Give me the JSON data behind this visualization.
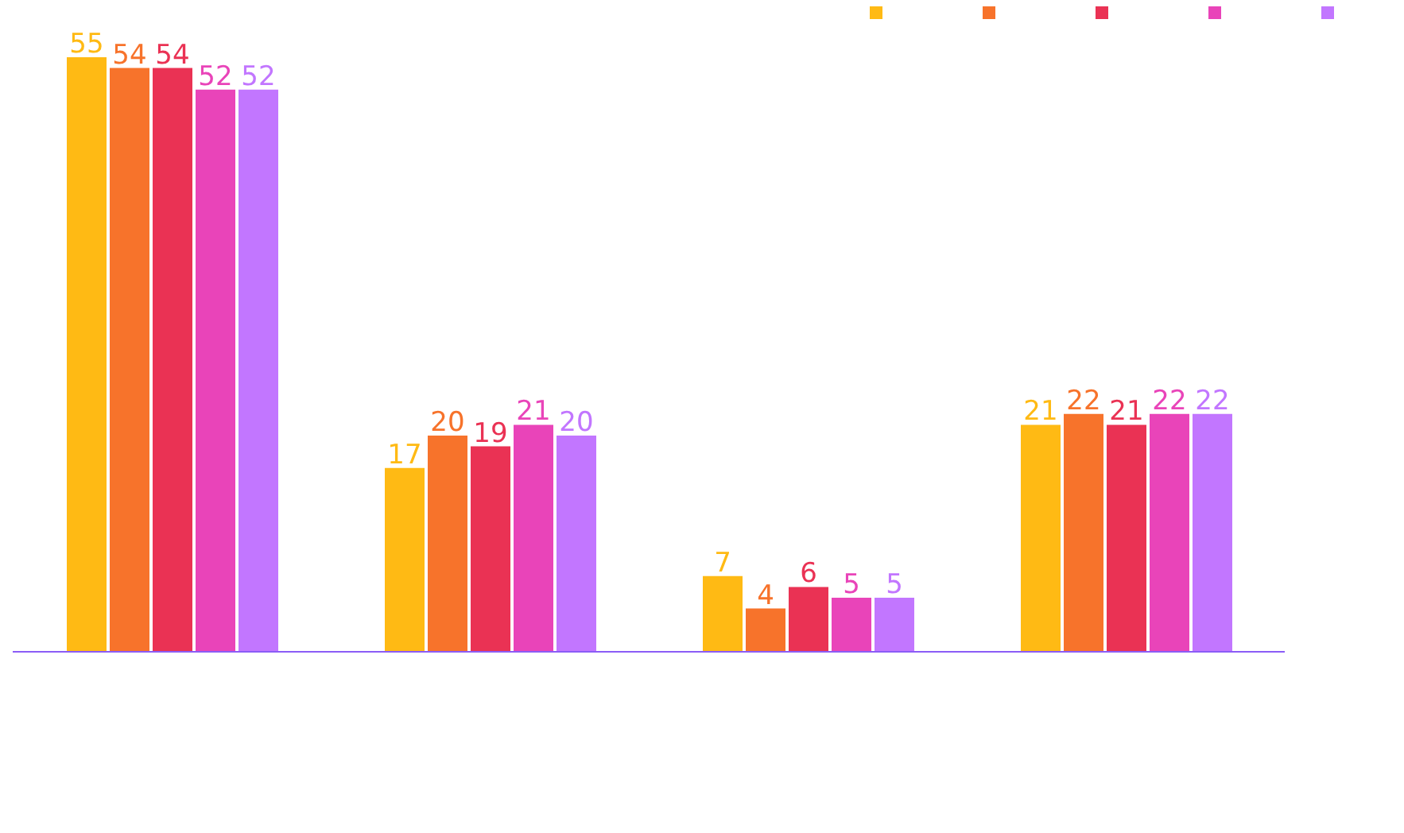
{
  "chart_data": {
    "type": "bar",
    "categories": [
      null,
      null,
      null,
      null
    ],
    "series": [
      {
        "color": "#ffba14",
        "values": [
          55,
          17,
          7,
          21
        ]
      },
      {
        "color": "#f7732b",
        "values": [
          54,
          20,
          4,
          22
        ]
      },
      {
        "color": "#ea3254",
        "values": [
          54,
          19,
          6,
          21
        ]
      },
      {
        "color": "#e944b9",
        "values": [
          52,
          21,
          5,
          22
        ]
      },
      {
        "color": "#c276ff",
        "values": [
          52,
          20,
          5,
          22
        ]
      }
    ],
    "data_labels": true,
    "grid": false
  }
}
